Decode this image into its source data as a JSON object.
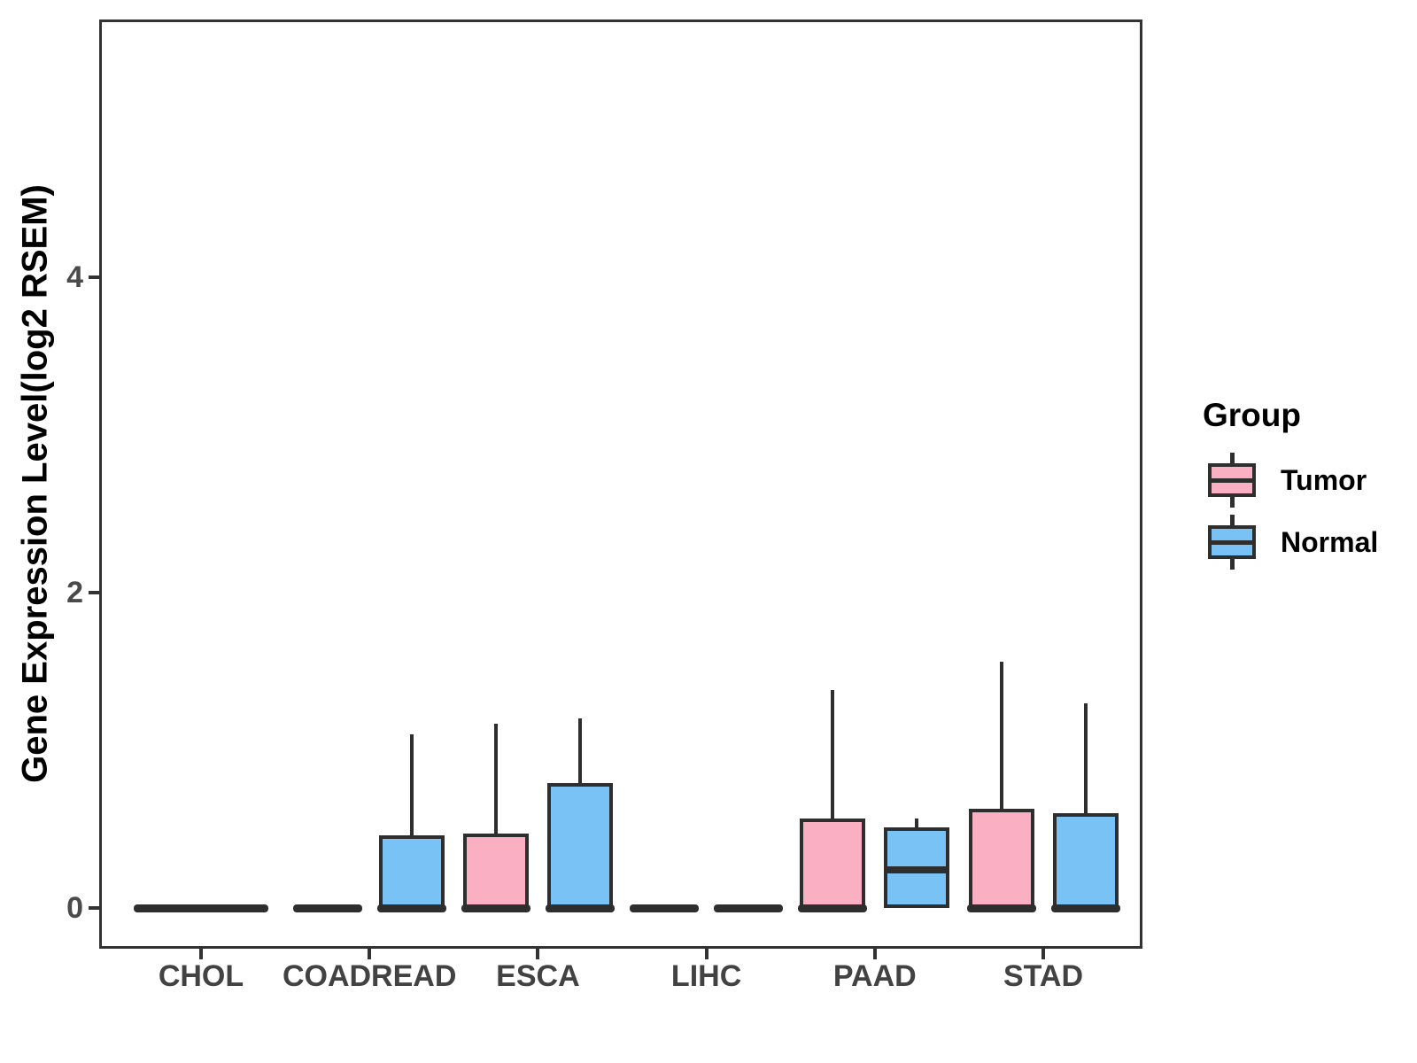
{
  "chart_data": {
    "type": "boxplot",
    "title": "",
    "xlabel": "",
    "ylabel": "Gene Expression Level(log2 RSEM)",
    "categories": [
      "CHOL",
      "COADREAD",
      "ESCA",
      "LIHC",
      "PAAD",
      "STAD"
    ],
    "y_ticks": [
      0,
      2,
      4
    ],
    "ylim": [
      -0.25,
      5.63
    ],
    "grid": false,
    "legend": {
      "title": "Group",
      "position": "right",
      "entries": [
        {
          "label": "Tumor",
          "color": "#FBAFC2"
        },
        {
          "label": "Normal",
          "color": "#79C2F5"
        }
      ]
    },
    "boxes": [
      {
        "category": "CHOL",
        "group": "Tumor+Normal",
        "full_width": true,
        "lo": 0,
        "q1": 0,
        "median": 0,
        "q3": 0,
        "hi": 0
      },
      {
        "category": "COADREAD",
        "group": "Tumor",
        "lo": 0,
        "q1": 0,
        "median": 0,
        "q3": 0,
        "hi": 0
      },
      {
        "category": "COADREAD",
        "group": "Normal",
        "lo": 0,
        "q1": 0,
        "median": 0,
        "q3": 0.46,
        "hi": 1.1
      },
      {
        "category": "ESCA",
        "group": "Tumor",
        "lo": 0,
        "q1": 0,
        "median": 0,
        "q3": 0.47,
        "hi": 1.17
      },
      {
        "category": "ESCA",
        "group": "Normal",
        "lo": 0,
        "q1": 0,
        "median": 0,
        "q3": 0.79,
        "hi": 1.2
      },
      {
        "category": "LIHC",
        "group": "Tumor",
        "lo": 0,
        "q1": 0,
        "median": 0,
        "q3": 0,
        "hi": 0
      },
      {
        "category": "LIHC",
        "group": "Normal",
        "lo": 0,
        "q1": 0,
        "median": 0,
        "q3": 0,
        "hi": 0
      },
      {
        "category": "PAAD",
        "group": "Tumor",
        "lo": 0,
        "q1": 0,
        "median": 0,
        "q3": 0.57,
        "hi": 1.38
      },
      {
        "category": "PAAD",
        "group": "Normal",
        "lo": 0,
        "q1": 0,
        "median": 0.24,
        "q3": 0.51,
        "hi": 0.57
      },
      {
        "category": "STAD",
        "group": "Tumor",
        "lo": 0,
        "q1": 0,
        "median": 0,
        "q3": 0.63,
        "hi": 1.56
      },
      {
        "category": "STAD",
        "group": "Normal",
        "lo": 0,
        "q1": 0,
        "median": 0,
        "q3": 0.6,
        "hi": 1.3
      }
    ],
    "colors": {
      "Tumor": "#FBAFC2",
      "Normal": "#79C2F5",
      "box_stroke": "#2E2E2E",
      "axis": "#333333",
      "y_tick_label": "#4A4A4A",
      "x_tick_label": "#424242"
    }
  }
}
